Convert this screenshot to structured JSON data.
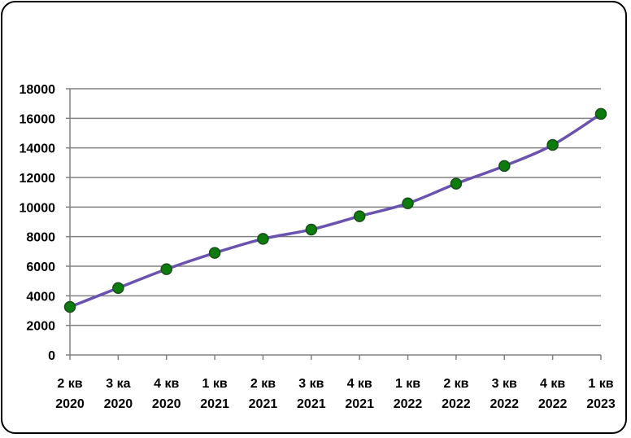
{
  "chart_data": {
    "type": "line",
    "title": "",
    "xlabel": "",
    "ylabel": "",
    "ylim": [
      0,
      18000
    ],
    "ystep": 2000,
    "grid": true,
    "legend": "none",
    "categories": [
      [
        "2 кв",
        "2020"
      ],
      [
        "3 ка",
        "2020"
      ],
      [
        "4 кв",
        "2020"
      ],
      [
        "1 кв",
        "2021"
      ],
      [
        "2 кв",
        "2021"
      ],
      [
        "3 кв",
        "2021"
      ],
      [
        "4 кв",
        "2021"
      ],
      [
        "1 кв",
        "2022"
      ],
      [
        "2 кв",
        "2022"
      ],
      [
        "3 кв",
        "2022"
      ],
      [
        "4 кв",
        "2022"
      ],
      [
        "1 кв",
        "2023"
      ]
    ],
    "series": [
      {
        "values": [
          3250,
          4530,
          5800,
          6900,
          7850,
          8480,
          9380,
          10250,
          11580,
          12780,
          14200,
          16300
        ]
      }
    ],
    "colors": {
      "line": "#6a52b0",
      "marker_fill": "#0a7d0a",
      "marker_stroke": "#1a4d1a",
      "grid": "#808080",
      "axis": "#808080"
    }
  }
}
